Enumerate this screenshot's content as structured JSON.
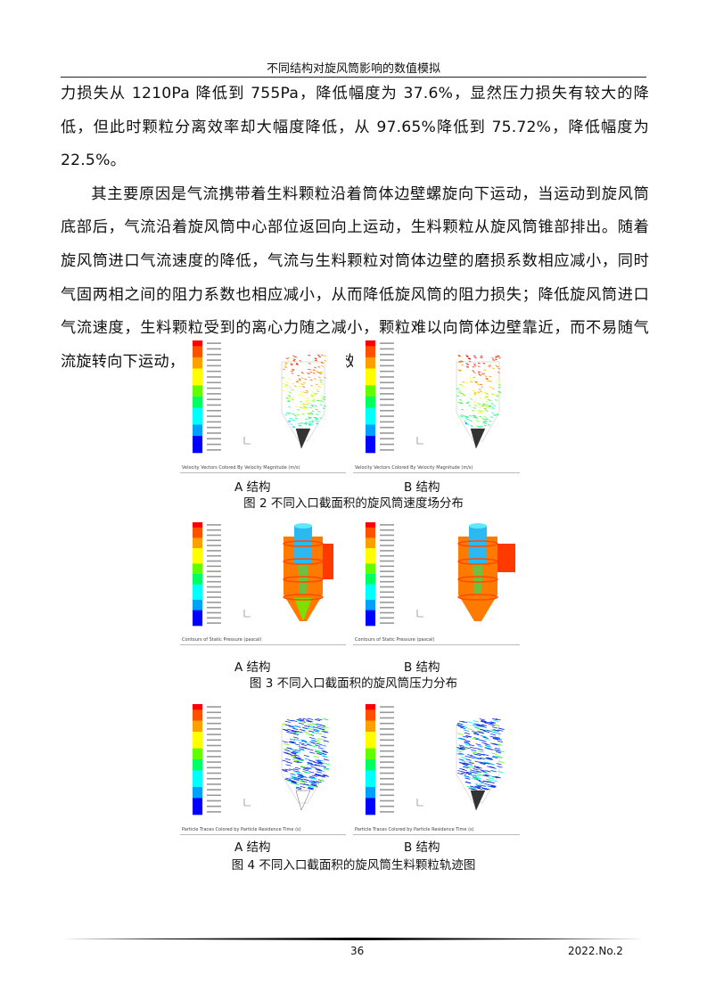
{
  "header": {
    "running_title": "不同结构对旋风筒影响的数值模拟"
  },
  "body": {
    "paragraphs": [
      "力损失从 1210Pa 降低到 755Pa，降低幅度为 37.6%，显然压力损失有较大的降低，但此时颗粒分离效率却大幅度降低，从 97.65%降低到 75.72%，降低幅度为 22.5%。",
      "其主要原因是气流携带着生料颗粒沿着筒体边壁螺旋向下运动，当运动到旋风筒底部后，气流沿着旋风筒中心部位返回向上运动，生料颗粒从旋风筒锥部排出。随着旋风筒进口气流速度的降低，气流与生料颗粒对筒体边壁的磨损系数相应减小，同时气固两相之间的阻力系数也相应减小，从而降低旋风筒的阻力损失；降低旋风筒进口气流速度，生料颗粒受到的离心力随之减小，颗粒难以向筒体边壁靠近，而不易随气流旋转向下运动，从而降低旋风筒的分离效率。"
    ]
  },
  "figures": [
    {
      "caption": "图 2  不同入口截面积的旋风筒速度场分布",
      "kind": "velocity",
      "panels": [
        {
          "label": "A 结构",
          "panel_caption": "Velocity Vectors Colored By Velocity Magnitude (m/s)"
        },
        {
          "label": "B 结构",
          "panel_caption": "Velocity Vectors Colored By Velocity Magnitude (m/s)"
        }
      ]
    },
    {
      "caption": "图 3  不同入口截面积的旋风筒压力分布",
      "kind": "pressure",
      "panels": [
        {
          "label": "A 结构",
          "panel_caption": "Contours of Static Pressure (pascal)"
        },
        {
          "label": "B 结构",
          "panel_caption": "Contours of Static Pressure (pascal)"
        }
      ]
    },
    {
      "caption": "图 4  不同入口截面积的旋风筒生料颗粒轨迹图",
      "kind": "traces",
      "panels": [
        {
          "label": "A 结构",
          "panel_caption": "Particle Traces Colored by Particle Residence Time (s)"
        },
        {
          "label": "B 结构",
          "panel_caption": "Particle Traces Colored by Particle Residence Time (s)"
        }
      ]
    }
  ],
  "footer": {
    "page_number": "36",
    "issue": "2022.No.2"
  },
  "colors": {
    "colormap": [
      "#0000ff",
      "#00a0ff",
      "#00ffff",
      "#00ff60",
      "#60ff00",
      "#ffff00",
      "#ffa000",
      "#ff5000",
      "#ff0000"
    ]
  }
}
